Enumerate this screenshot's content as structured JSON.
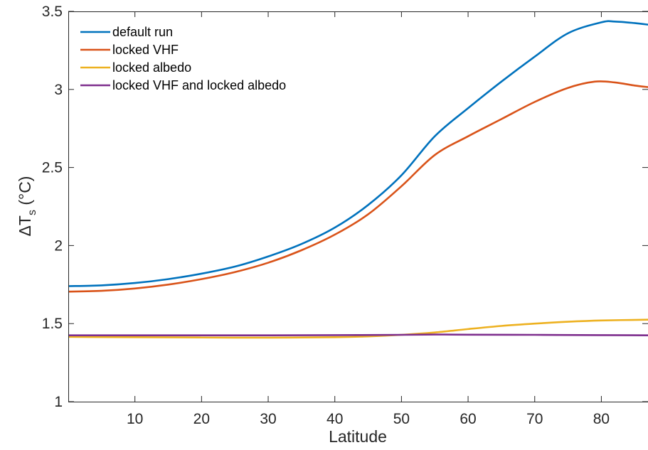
{
  "chart_data": {
    "type": "line",
    "xlabel": "Latitude",
    "ylabel": {
      "main": "ΔT",
      "sub": "s",
      "unit": " (°C)"
    },
    "xlim": [
      0,
      87
    ],
    "ylim": [
      1,
      3.5
    ],
    "xticks": [
      10,
      20,
      30,
      40,
      50,
      60,
      70,
      80
    ],
    "yticks": [
      1,
      1.5,
      2,
      2.5,
      3,
      3.5
    ],
    "ytick_labels": [
      "1",
      "1.5",
      "2",
      "2.5",
      "3",
      "3.5"
    ],
    "grid": false,
    "legend_position": "top-left",
    "series": [
      {
        "name": "default run",
        "color": "#0072BD",
        "x": [
          0,
          5,
          10,
          15,
          20,
          25,
          30,
          35,
          40,
          45,
          50,
          55,
          60,
          65,
          70,
          75,
          80,
          82,
          85,
          87
        ],
        "y": [
          1.74,
          1.745,
          1.76,
          1.785,
          1.82,
          1.865,
          1.93,
          2.01,
          2.115,
          2.26,
          2.45,
          2.7,
          2.88,
          3.05,
          3.21,
          3.36,
          3.43,
          3.435,
          3.425,
          3.415
        ]
      },
      {
        "name": "locked VHF",
        "color": "#D95319",
        "x": [
          0,
          5,
          10,
          15,
          20,
          25,
          30,
          35,
          40,
          45,
          50,
          55,
          60,
          65,
          70,
          75,
          79,
          82,
          85,
          87
        ],
        "y": [
          1.705,
          1.71,
          1.725,
          1.75,
          1.785,
          1.83,
          1.89,
          1.97,
          2.07,
          2.2,
          2.38,
          2.58,
          2.7,
          2.81,
          2.92,
          3.01,
          3.05,
          3.045,
          3.025,
          3.015
        ]
      },
      {
        "name": "locked albedo",
        "color": "#EDB120",
        "x": [
          0,
          10,
          20,
          30,
          40,
          45,
          50,
          55,
          60,
          65,
          70,
          75,
          80,
          87
        ],
        "y": [
          1.415,
          1.413,
          1.411,
          1.41,
          1.413,
          1.418,
          1.428,
          1.443,
          1.465,
          1.485,
          1.5,
          1.512,
          1.52,
          1.525
        ]
      },
      {
        "name": "locked VHF and locked albedo",
        "color": "#7E2F8E",
        "x": [
          0,
          10,
          20,
          30,
          40,
          50,
          55,
          60,
          70,
          80,
          87
        ],
        "y": [
          1.425,
          1.425,
          1.425,
          1.425,
          1.426,
          1.428,
          1.43,
          1.429,
          1.428,
          1.426,
          1.425
        ]
      }
    ]
  }
}
